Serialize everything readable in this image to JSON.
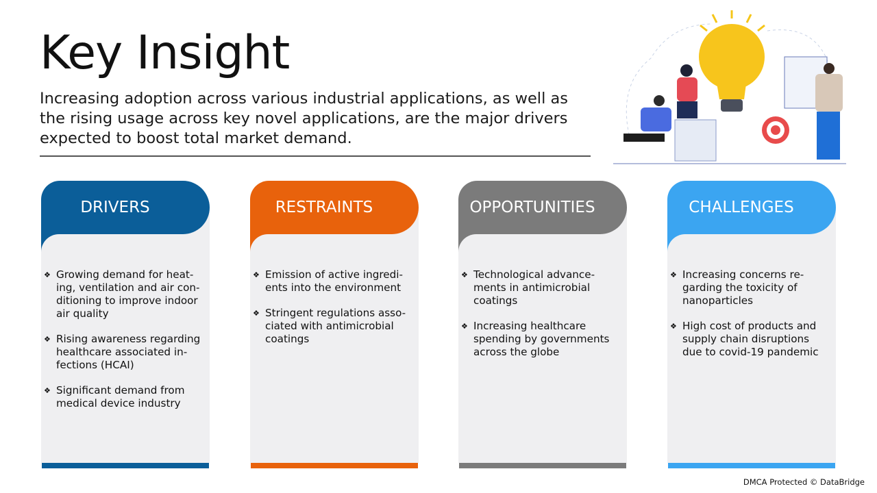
{
  "title": "Key Insight",
  "subtitle": "Increasing adoption across various industrial applications, as well as the rising usage across key novel applications, are the major drivers expected to boost total market demand.",
  "cards": [
    {
      "label": "DRIVERS",
      "color": "#0b5e99",
      "items": [
        "Growing demand for heat-ing, ventilation and air con-ditioning to improve indoor air quality",
        "Rising awareness regarding healthcare associated in-fections (HCAI)",
        "Significant demand from medical device industry"
      ]
    },
    {
      "label": "RESTRAINTS",
      "color": "#e8620c",
      "items": [
        "Emission of active ingredi-ents into the environment",
        "Stringent regulations asso-ciated with antimicrobial coatings"
      ]
    },
    {
      "label": "OPPORTUNITIES",
      "color": "#7b7b7b",
      "items": [
        "Technological advance-ments in antimicrobial coatings",
        "Increasing healthcare spending by governments across the globe"
      ]
    },
    {
      "label": "CHALLENGES",
      "color": "#3ba5f1",
      "items": [
        "Increasing concerns re-garding the toxicity of nanoparticles",
        "High cost of products and supply chain disruptions due to covid-19 pandemic"
      ]
    }
  ],
  "bullet_icon": "diamond-dots-icon",
  "illustration": "lightbulb-teamwork-illustration",
  "footer": "DMCA Protected © DataBridge"
}
